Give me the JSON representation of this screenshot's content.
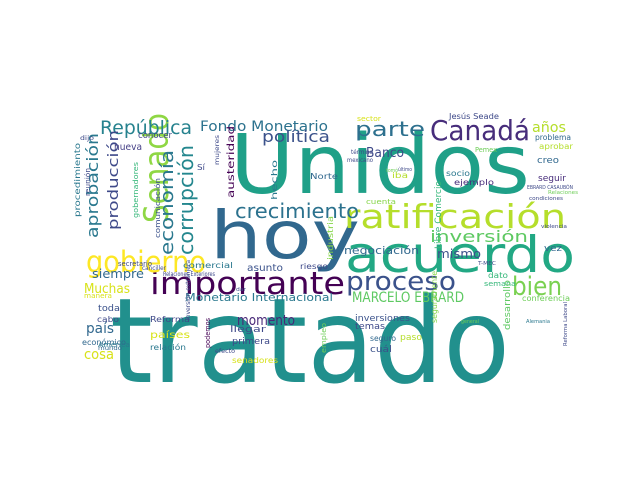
{
  "cloud": {
    "words": [
      {
        "text": "tratado",
        "color": "#21908d"
      },
      {
        "text": "Unidos",
        "color": "#1fa088"
      },
      {
        "text": "hoy",
        "color": "#31688e"
      },
      {
        "text": "acuerdo",
        "color": "#22a884"
      },
      {
        "text": "ratificación",
        "color": "#b5de2b"
      },
      {
        "text": "importante",
        "color": "#440154"
      },
      {
        "text": "Senado",
        "color": "#8fd744"
      },
      {
        "text": "Canadá",
        "color": "#472d7b"
      },
      {
        "text": "gobierno",
        "color": "#fde725"
      },
      {
        "text": "proceso",
        "color": "#3b528b"
      },
      {
        "text": "bien",
        "color": "#7ad151"
      },
      {
        "text": "crecimiento",
        "color": "#2c728e"
      },
      {
        "text": "República",
        "color": "#26828e"
      },
      {
        "text": "corrupción",
        "color": "#24878e"
      },
      {
        "text": "economía",
        "color": "#2a788e"
      },
      {
        "text": "Fondo Monetario",
        "color": "#2c728e"
      },
      {
        "text": "política",
        "color": "#3b528b"
      },
      {
        "text": "parte",
        "color": "#2d708e"
      },
      {
        "text": "inversión",
        "color": "#5ec962"
      },
      {
        "text": "aprobación",
        "color": "#2a788e"
      },
      {
        "text": "producción",
        "color": "#3e4989"
      },
      {
        "text": "años",
        "color": "#b5de2b"
      },
      {
        "text": "MARCELO EBRARD",
        "color": "#5ec962"
      },
      {
        "text": "Muchas",
        "color": "#d8e219"
      },
      {
        "text": "momento",
        "color": "#482878"
      },
      {
        "text": "país",
        "color": "#31688e"
      },
      {
        "text": "cosa",
        "color": "#d8e219"
      },
      {
        "text": "siempre",
        "color": "#31688e"
      },
      {
        "text": "Monetario Internacional",
        "color": "#2a788e"
      },
      {
        "text": "Banco",
        "color": "#3e4989"
      },
      {
        "text": "mismo",
        "color": "#3b528b"
      },
      {
        "text": "negociación",
        "color": "#31688e"
      },
      {
        "text": "nueva",
        "color": "#433e85"
      },
      {
        "text": "conocer",
        "color": "#3e4989"
      },
      {
        "text": "austeridad",
        "color": "#440154"
      },
      {
        "text": "dijo",
        "color": "#3e4989"
      },
      {
        "text": "Norte",
        "color": "#31688e"
      },
      {
        "text": "hecho",
        "color": "#2a788e"
      },
      {
        "text": "creo",
        "color": "#31688e"
      },
      {
        "text": "seguir",
        "color": "#472d7b"
      },
      {
        "text": "aprobar",
        "color": "#b5de2b"
      },
      {
        "text": "Pemex",
        "color": "#6ece58"
      },
      {
        "text": "Jesús Seade",
        "color": "#3e4989"
      },
      {
        "text": "problema",
        "color": "#31688e"
      },
      {
        "text": "sector",
        "color": "#d8e219"
      },
      {
        "text": "Libre Comercio",
        "color": "#35b779"
      },
      {
        "text": "ejemplo",
        "color": "#472d7b"
      },
      {
        "text": "socio",
        "color": "#2a788e"
      },
      {
        "text": "iba",
        "color": "#b5de2b"
      },
      {
        "text": "cuenta",
        "color": "#86d549"
      },
      {
        "text": "industria",
        "color": "#86d549"
      },
      {
        "text": "comercial",
        "color": "#2a788e"
      },
      {
        "text": "asunto",
        "color": "#3b528b"
      },
      {
        "text": "riesgo",
        "color": "#3e4989"
      },
      {
        "text": "dato",
        "color": "#35b779"
      },
      {
        "text": "semana",
        "color": "#35b779"
      },
      {
        "text": "vez",
        "color": "#31688e"
      },
      {
        "text": "desarrollo",
        "color": "#5ec962"
      },
      {
        "text": "conferencia",
        "color": "#6ece58"
      },
      {
        "text": "inversiones",
        "color": "#3b528b"
      },
      {
        "text": "temas",
        "color": "#3e4989"
      },
      {
        "text": "seguro",
        "color": "#31688e"
      },
      {
        "text": "cuál",
        "color": "#3b528b"
      },
      {
        "text": "paso",
        "color": "#b5de2b"
      },
      {
        "text": "empleo",
        "color": "#6ece58"
      },
      {
        "text": "llegar",
        "color": "#3e4989"
      },
      {
        "text": "primera",
        "color": "#3e4989"
      },
      {
        "text": "senadores",
        "color": "#d8e219"
      },
      {
        "text": "países",
        "color": "#d8e219"
      },
      {
        "text": "Reforma",
        "color": "#3e4989"
      },
      {
        "text": "relación",
        "color": "#2a788e"
      },
      {
        "text": "económico",
        "color": "#31688e"
      },
      {
        "text": "América",
        "color": "#2a788e"
      },
      {
        "text": "toda",
        "color": "#3b528b"
      },
      {
        "text": "cabo",
        "color": "#3e4989"
      },
      {
        "text": "secretario",
        "color": "#3e4989"
      },
      {
        "text": "manera",
        "color": "#d8e219"
      },
      {
        "text": "mundo",
        "color": "#31688e"
      },
      {
        "text": "procedimiento",
        "color": "#2a788e"
      },
      {
        "text": "reunión",
        "color": "#3e4989"
      },
      {
        "text": "gobernadores",
        "color": "#35b779"
      },
      {
        "text": "comunicación",
        "color": "#3b528b"
      },
      {
        "text": "podemos",
        "color": "#440154"
      },
      {
        "text": "efecto",
        "color": "#3e4989"
      },
      {
        "text": "Relaciones Exteriores",
        "color": "#3e4989"
      },
      {
        "text": "inversión extranjera",
        "color": "#3e4989"
      },
      {
        "text": "seguramente",
        "color": "#86d549"
      },
      {
        "text": "Sí",
        "color": "#3e4989"
      },
      {
        "text": "canciller",
        "color": "#3e4989"
      },
      {
        "text": "mujeres",
        "color": "#3e4989"
      },
      {
        "text": "mexicano",
        "color": "#3e4989"
      },
      {
        "text": "término",
        "color": "#3e4989"
      },
      {
        "text": "tomó",
        "color": "#6ece58"
      },
      {
        "text": "último",
        "color": "#3e4989"
      },
      {
        "text": "general",
        "color": "#6ece58"
      },
      {
        "text": "Alemania",
        "color": "#2a788e"
      },
      {
        "text": "Reforma Laboral",
        "color": "#3e4989"
      },
      {
        "text": "T-MEC",
        "color": "#3e4989"
      },
      {
        "text": "violencia",
        "color": "#3e4989"
      },
      {
        "text": "condiciones",
        "color": "#3e4989"
      },
      {
        "text": "EBRARD CASAUBÓN",
        "color": "#3e4989"
      },
      {
        "text": "Relaciones",
        "color": "#6ece58"
      },
      {
        "text": "dar",
        "color": "#3e4989"
      }
    ]
  }
}
